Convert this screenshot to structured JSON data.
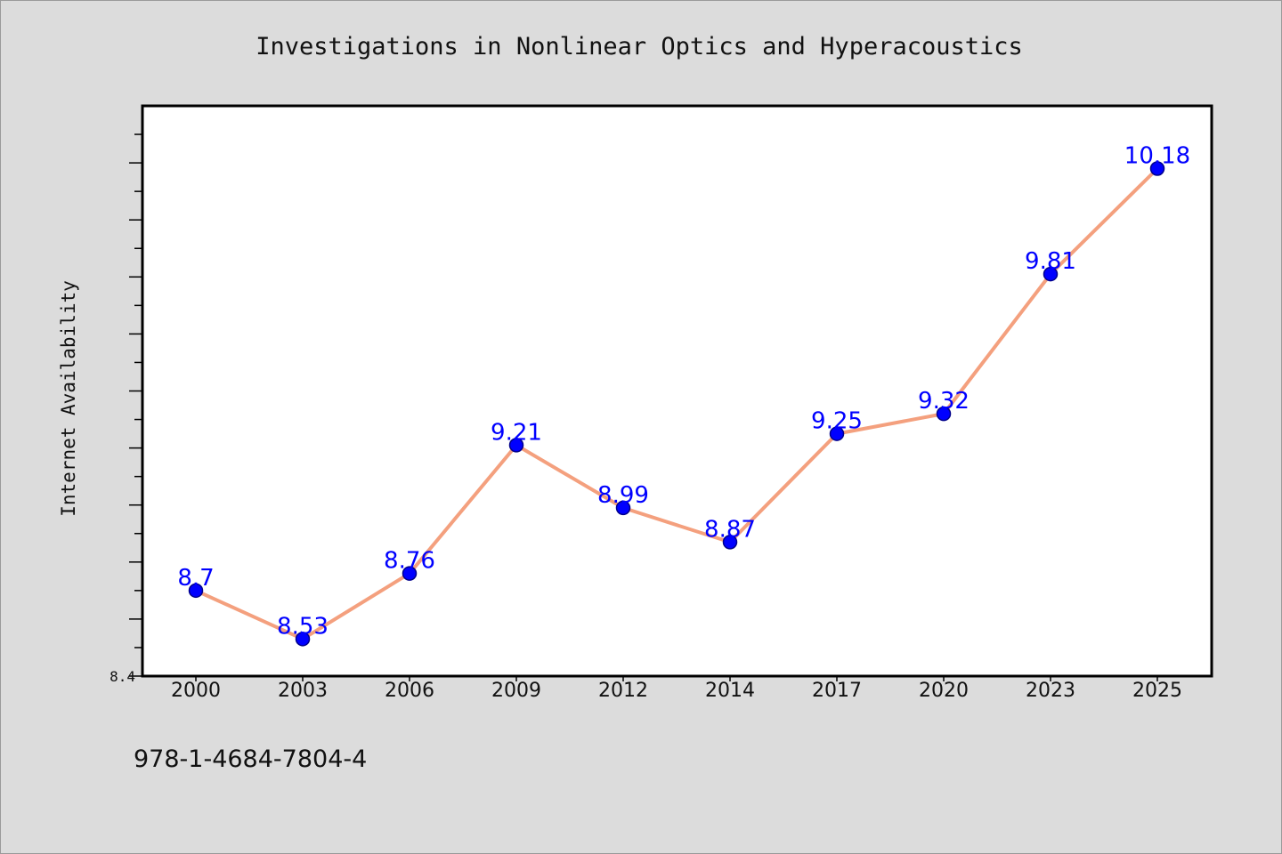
{
  "chart_data": {
    "type": "line",
    "title": "Investigations in Nonlinear Optics and Hyperacoustics",
    "xlabel": "",
    "ylabel": "Internet Availability",
    "categories": [
      "2000",
      "2003",
      "2006",
      "2009",
      "2012",
      "2014",
      "2017",
      "2020",
      "2023",
      "2025"
    ],
    "series": [
      {
        "values": [
          8.7,
          8.53,
          8.76,
          9.21,
          8.99,
          8.87,
          9.25,
          9.32,
          9.81,
          10.18
        ],
        "data_labels": [
          "8.7",
          "8.53",
          "8.76",
          "9.21",
          "8.99",
          "8.87",
          "9.25",
          "9.32",
          "9.81",
          "10.18"
        ]
      }
    ],
    "ylim": [
      8.4,
      10.4
    ],
    "ytick_labels": [
      "8.4"
    ],
    "grid": false,
    "colors": {
      "line": "#f4a07e",
      "marker": "#0000ff",
      "marker_edge": "#00008b",
      "label": "#0000ff",
      "background": "#dcdcdc",
      "plot_bg": "#ffffff"
    }
  },
  "footnote": "978-1-4684-7804-4"
}
